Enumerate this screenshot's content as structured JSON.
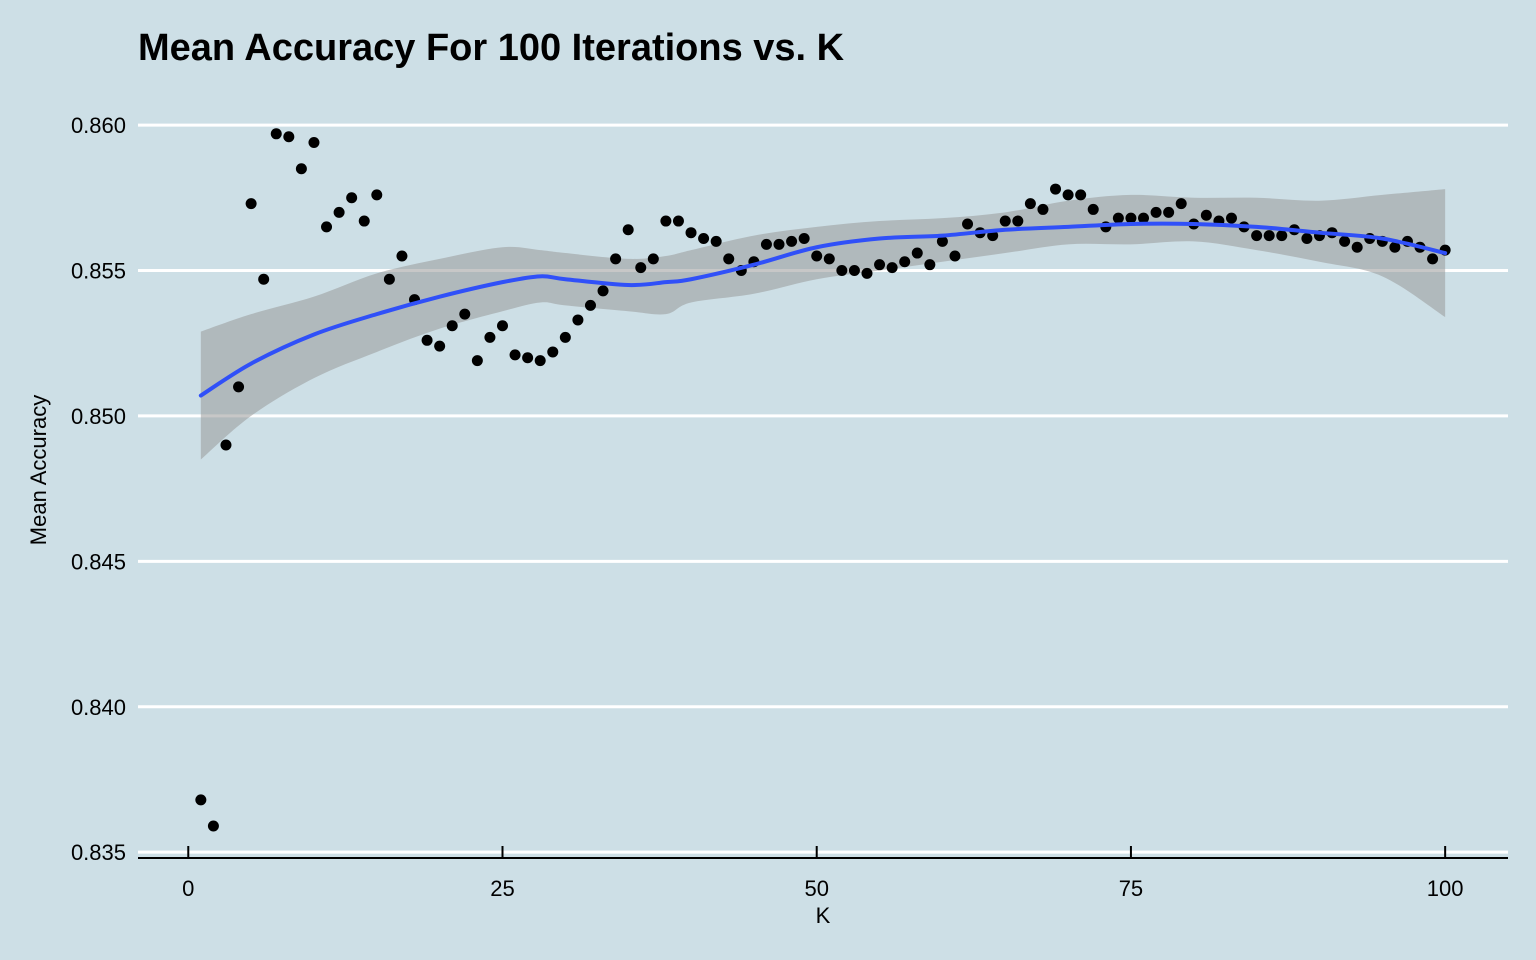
{
  "chart_data": {
    "type": "scatter",
    "title": "Mean Accuracy For 100 Iterations vs. K",
    "xlabel": "K",
    "ylabel": "Mean Accuracy",
    "xlim": [
      -4,
      105
    ],
    "ylim": [
      0.8348,
      0.861
    ],
    "x_ticks": [
      0,
      25,
      50,
      75,
      100
    ],
    "x_tick_labels": [
      "0",
      "25",
      "50",
      "75",
      "100"
    ],
    "y_ticks": [
      0.835,
      0.84,
      0.845,
      0.85,
      0.855,
      0.86
    ],
    "y_tick_labels": [
      "0.835",
      "0.840",
      "0.845",
      "0.850",
      "0.855",
      "0.860"
    ],
    "grid": "horizontal",
    "legend": "none",
    "colors": {
      "background": "#cddfe6",
      "points": "#000000",
      "smooth_line": "#3050f8",
      "confidence_band": "#999999",
      "grid": "#ffffff",
      "axis": "#000000"
    },
    "series": [
      {
        "type": "scatter",
        "x": [
          1,
          2,
          3,
          4,
          5,
          6,
          7,
          8,
          9,
          10,
          11,
          12,
          13,
          14,
          15,
          16,
          17,
          18,
          19,
          20,
          21,
          22,
          23,
          24,
          25,
          26,
          27,
          28,
          29,
          30,
          31,
          32,
          33,
          34,
          35,
          36,
          37,
          38,
          39,
          40,
          41,
          42,
          43,
          44,
          45,
          46,
          47,
          48,
          49,
          50,
          51,
          52,
          53,
          54,
          55,
          56,
          57,
          58,
          59,
          60,
          61,
          62,
          63,
          64,
          65,
          66,
          67,
          68,
          69,
          70,
          71,
          72,
          73,
          74,
          75,
          76,
          77,
          78,
          79,
          80,
          81,
          82,
          83,
          84,
          85,
          86,
          87,
          88,
          89,
          90,
          91,
          92,
          93,
          94,
          95,
          96,
          97,
          98,
          99,
          100
        ],
        "y": [
          0.8368,
          0.8359,
          0.849,
          0.851,
          0.8573,
          0.8547,
          0.8597,
          0.8596,
          0.8585,
          0.8594,
          0.8565,
          0.857,
          0.8575,
          0.8567,
          0.8576,
          0.8547,
          0.8555,
          0.854,
          0.8526,
          0.8524,
          0.8531,
          0.8535,
          0.8519,
          0.8527,
          0.8531,
          0.8521,
          0.852,
          0.8519,
          0.8522,
          0.8527,
          0.8533,
          0.8538,
          0.8543,
          0.8554,
          0.8564,
          0.8551,
          0.8554,
          0.8567,
          0.8567,
          0.8563,
          0.8561,
          0.856,
          0.8554,
          0.855,
          0.8553,
          0.8559,
          0.8559,
          0.856,
          0.8561,
          0.8555,
          0.8554,
          0.855,
          0.855,
          0.8549,
          0.8552,
          0.8551,
          0.8553,
          0.8556,
          0.8552,
          0.856,
          0.8555,
          0.8566,
          0.8563,
          0.8562,
          0.8567,
          0.8567,
          0.8573,
          0.8571,
          0.8578,
          0.8576,
          0.8576,
          0.8571,
          0.8565,
          0.8568,
          0.8568,
          0.8568,
          0.857,
          0.857,
          0.8573,
          0.8566,
          0.8569,
          0.8567,
          0.8568,
          0.8565,
          0.8562,
          0.8562,
          0.8562,
          0.8564,
          0.8561,
          0.8562,
          0.8563,
          0.856,
          0.8558,
          0.8561,
          0.856,
          0.8558,
          0.856,
          0.8558,
          0.8554,
          0.8557
        ]
      },
      {
        "type": "smooth",
        "x": [
          1,
          5,
          10,
          15,
          20,
          25,
          28,
          30,
          35,
          38,
          40,
          45,
          50,
          55,
          60,
          65,
          70,
          75,
          80,
          85,
          90,
          95,
          100
        ],
        "y": [
          0.8507,
          0.8518,
          0.8528,
          0.8535,
          0.8541,
          0.8546,
          0.8548,
          0.8547,
          0.8545,
          0.8546,
          0.8547,
          0.8552,
          0.8558,
          0.8561,
          0.8562,
          0.8564,
          0.8565,
          0.8566,
          0.8566,
          0.8565,
          0.8563,
          0.8561,
          0.8556
        ],
        "upper": [
          0.8529,
          0.8535,
          0.8541,
          0.8549,
          0.8554,
          0.8558,
          0.8557,
          0.8556,
          0.8554,
          0.8555,
          0.8557,
          0.8562,
          0.8565,
          0.8567,
          0.8568,
          0.857,
          0.8574,
          0.8576,
          0.8575,
          0.8575,
          0.8574,
          0.8576,
          0.8578
        ],
        "lower": [
          0.8485,
          0.85,
          0.8513,
          0.8522,
          0.853,
          0.8536,
          0.8539,
          0.8538,
          0.8536,
          0.8535,
          0.8539,
          0.8542,
          0.8547,
          0.855,
          0.8553,
          0.8556,
          0.8559,
          0.8559,
          0.856,
          0.8557,
          0.8553,
          0.8548,
          0.8534
        ]
      }
    ]
  }
}
